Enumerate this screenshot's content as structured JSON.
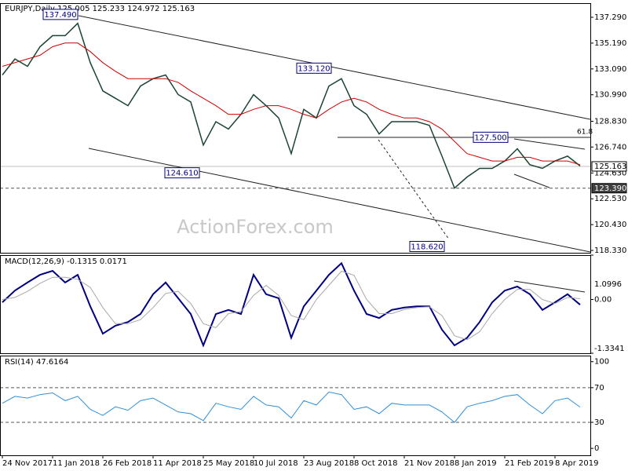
{
  "chart_data": [
    {
      "type": "line",
      "title": "EURJPY,Daily  125.005 125.233 124.972 125.163",
      "x": [
        0,
        1,
        2,
        3,
        4,
        5,
        6,
        7,
        8,
        9,
        10,
        11,
        12,
        13,
        14,
        15,
        16,
        17,
        18,
        19,
        20,
        21,
        22,
        23,
        24,
        25,
        26,
        27,
        28,
        29,
        30,
        31,
        32,
        33,
        34,
        35,
        36,
        37,
        38,
        39,
        40,
        41,
        42,
        43,
        44,
        45,
        46
      ],
      "xlim": [
        -0.1875,
        46.8125
      ],
      "ylim": [
        118.14,
        138.44
      ],
      "yticks": [
        {
          "value": 137.29,
          "label": "137.290"
        },
        {
          "value": 135.19,
          "label": "135.190"
        },
        {
          "value": 133.09,
          "label": "133.090"
        },
        {
          "value": 130.99,
          "label": "130.990"
        },
        {
          "value": 128.83,
          "label": "128.830"
        },
        {
          "value": 126.74,
          "label": "126.740"
        },
        {
          "value": 124.63,
          "label": "124.630"
        },
        {
          "value": 122.53,
          "label": "122.530"
        },
        {
          "value": 120.43,
          "label": "120.430"
        },
        {
          "value": 118.33,
          "label": "118.330"
        }
      ],
      "series": [
        {
          "color": "#1b4332",
          "values": [
            132.6,
            133.9,
            133.3,
            134.9,
            135.8,
            135.8,
            136.8,
            133.6,
            131.3,
            130.7,
            130.1,
            131.7,
            132.3,
            132.6,
            131.0,
            130.4,
            126.9,
            128.8,
            128.2,
            129.4,
            131.0,
            130.1,
            129.1,
            126.2,
            129.8,
            129.1,
            131.7,
            132.3,
            130.1,
            129.4,
            127.8,
            128.8,
            128.8,
            128.8,
            128.5,
            126.0,
            123.4,
            124.3,
            125.0,
            125.0,
            125.6,
            126.6,
            125.3,
            125.0,
            125.6,
            126.0,
            125.2
          ]
        },
        {
          "color": "#cc0000",
          "values": [
            133.3,
            133.6,
            133.9,
            134.2,
            134.9,
            135.2,
            135.2,
            134.5,
            133.6,
            132.9,
            132.3,
            132.3,
            132.3,
            132.3,
            132.0,
            131.3,
            130.7,
            130.1,
            129.4,
            129.4,
            129.8,
            130.1,
            130.1,
            129.8,
            129.4,
            129.1,
            129.8,
            130.4,
            130.7,
            130.4,
            129.8,
            129.4,
            129.1,
            129.1,
            128.8,
            128.2,
            127.2,
            126.2,
            125.9,
            125.6,
            125.6,
            125.9,
            125.9,
            125.6,
            125.6,
            125.6,
            125.3
          ]
        }
      ],
      "levels": [
        {
          "value": 125.163,
          "label": "125.163"
        },
        {
          "value": 123.39,
          "label": "123.390"
        }
      ],
      "annotations": [
        {
          "value": 137.49,
          "label": "137.490"
        },
        {
          "value": 133.12,
          "label": "133.120"
        },
        {
          "value": 124.61,
          "label": "124.610"
        },
        {
          "value": 127.5,
          "label": "127.500"
        },
        {
          "value": 118.62,
          "label": "118.620"
        }
      ],
      "fib_label": "61.8",
      "watermark": "ActionForex.com"
    },
    {
      "type": "line",
      "title": "MACD(12,26,9) -0.1315 0.0171",
      "x": [
        0,
        1,
        2,
        3,
        4,
        5,
        6,
        7,
        8,
        9,
        10,
        11,
        12,
        13,
        14,
        15,
        16,
        17,
        18,
        19,
        20,
        21,
        22,
        23,
        24,
        25,
        26,
        27,
        28,
        29,
        30,
        31,
        32,
        33,
        34,
        35,
        36,
        37,
        38,
        39,
        40,
        41,
        42,
        43,
        44,
        45,
        46
      ],
      "xlim": [
        -0.1875,
        46.8125
      ],
      "ylim": [
        -1.3341,
        1.0996
      ],
      "yticks": [
        1.0996,
        {
          "value": 0,
          "label": "0.00"
        },
        -1.3341
      ],
      "series": [
        {
          "color": "#000080",
          "values": [
            -0.07,
            0.22,
            0.42,
            0.61,
            0.71,
            0.42,
            0.61,
            -0.17,
            -0.85,
            -0.65,
            -0.56,
            -0.36,
            0.13,
            0.42,
            0.03,
            -0.36,
            -1.14,
            -0.36,
            -0.26,
            -0.36,
            0.61,
            0.13,
            0.03,
            -0.95,
            -0.17,
            0.22,
            0.61,
            0.9,
            0.22,
            -0.36,
            -0.46,
            -0.26,
            -0.2,
            -0.17,
            -0.17,
            -0.75,
            -1.14,
            -0.95,
            -0.56,
            -0.07,
            0.22,
            0.32,
            0.13,
            -0.26,
            -0.07,
            0.13,
            -0.13
          ]
        },
        {
          "color": "#a8a8a8",
          "values": [
            0.0,
            0.05,
            0.2,
            0.4,
            0.55,
            0.55,
            0.5,
            0.3,
            -0.2,
            -0.6,
            -0.6,
            -0.5,
            -0.2,
            0.15,
            0.2,
            -0.1,
            -0.6,
            -0.7,
            -0.35,
            -0.3,
            0.1,
            0.35,
            0.1,
            -0.4,
            -0.5,
            0.0,
            0.35,
            0.7,
            0.6,
            0.0,
            -0.35,
            -0.35,
            -0.25,
            -0.2,
            -0.18,
            -0.4,
            -0.9,
            -1.0,
            -0.8,
            -0.35,
            0.0,
            0.25,
            0.25,
            0.0,
            -0.1,
            0.05,
            0.02
          ]
        }
      ]
    },
    {
      "type": "line",
      "title": "RSI(14) 47.6164",
      "x": [
        0,
        1,
        2,
        3,
        4,
        5,
        6,
        7,
        8,
        9,
        10,
        11,
        12,
        13,
        14,
        15,
        16,
        17,
        18,
        19,
        20,
        21,
        22,
        23,
        24,
        25,
        26,
        27,
        28,
        29,
        30,
        31,
        32,
        33,
        34,
        35,
        36,
        37,
        38,
        39,
        40,
        41,
        42,
        43,
        44,
        45,
        46
      ],
      "xlim": [
        -0.1875,
        46.8125
      ],
      "xticks": [
        {
          "value": 0,
          "label": "24 Nov 2017"
        },
        {
          "value": 4,
          "label": "11 Jan 2018"
        },
        {
          "value": 8,
          "label": "26 Feb 2018"
        },
        {
          "value": 12,
          "label": "11 Apr 2018"
        },
        {
          "value": 16,
          "label": "25 May 2018"
        },
        {
          "value": 20,
          "label": "10 Jul 2018"
        },
        {
          "value": 24,
          "label": "23 Aug 2018"
        },
        {
          "value": 28,
          "label": "8 Oct 2018"
        },
        {
          "value": 32,
          "label": "21 Nov 2018"
        },
        {
          "value": 36,
          "label": "8 Jan 2019"
        },
        {
          "value": 40,
          "label": "21 Feb 2019"
        },
        {
          "value": 44,
          "label": "8 Apr 2019"
        }
      ],
      "ylim": [
        -8,
        107
      ],
      "yticks": [
        100,
        70,
        30,
        0
      ],
      "levels": [
        70,
        30
      ],
      "series": [
        {
          "color": "#2f8fd8",
          "values": [
            52,
            60,
            58,
            62,
            64,
            55,
            60,
            45,
            38,
            48,
            44,
            55,
            58,
            50,
            42,
            40,
            32,
            52,
            48,
            45,
            60,
            50,
            48,
            35,
            55,
            50,
            65,
            62,
            45,
            48,
            40,
            52,
            50,
            50,
            50,
            42,
            30,
            48,
            52,
            55,
            60,
            62,
            50,
            40,
            55,
            58,
            47.6
          ]
        }
      ]
    }
  ]
}
